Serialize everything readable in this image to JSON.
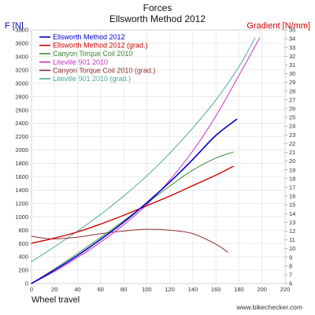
{
  "chart_data": {
    "type": "line",
    "title": "Forces",
    "subtitle": "Ellsworth Method 2012",
    "left_axis_label": "F [N]",
    "right_axis_label": "Gradient [N/mm]",
    "xlabel": "Wheel travel",
    "watermark": "www.bikechecker.com",
    "xlim": [
      0,
      220
    ],
    "ylim_left": [
      0,
      3800
    ],
    "ylim_right": [
      6,
      35
    ],
    "x_ticks": [
      0,
      20,
      40,
      60,
      80,
      100,
      120,
      140,
      160,
      180,
      200,
      220
    ],
    "y_ticks_left": [
      0,
      200,
      400,
      600,
      800,
      1000,
      1200,
      1400,
      1600,
      1800,
      2000,
      2200,
      2400,
      2600,
      2800,
      3000,
      3200,
      3400,
      3600,
      3800
    ],
    "y_ticks_right": [
      6,
      7,
      8,
      9,
      10,
      11,
      12,
      13,
      14,
      15,
      16,
      17,
      18,
      19,
      20,
      21,
      22,
      23,
      24,
      25,
      26,
      27,
      28,
      29,
      30,
      31,
      32,
      33,
      34,
      35
    ],
    "grid": true,
    "legend_position": "top-left",
    "series": [
      {
        "name": "Ellsworth Method 2012",
        "color": "#0000cc",
        "axis": "left",
        "width": 1.6,
        "x": [
          0,
          20,
          40,
          60,
          80,
          100,
          120,
          140,
          160,
          178
        ],
        "y": [
          0,
          200,
          420,
          660,
          920,
          1210,
          1520,
          1860,
          2220,
          2460
        ]
      },
      {
        "name": "Ellsworth Method 2012 (grad.)",
        "color": "#cc0000",
        "axis": "right",
        "width": 1.4,
        "x": [
          0,
          20,
          40,
          60,
          80,
          100,
          120,
          140,
          160,
          175
        ],
        "y": [
          10.6,
          11.2,
          11.9,
          12.8,
          13.8,
          14.9,
          16.0,
          17.2,
          18.4,
          19.4
        ]
      },
      {
        "name": "Canyon Torque Coil 2010",
        "color": "#3a8a3a",
        "axis": "left",
        "width": 1.0,
        "x": [
          0,
          20,
          40,
          60,
          80,
          100,
          120,
          140,
          160,
          175
        ],
        "y": [
          0,
          220,
          450,
          690,
          940,
          1200,
          1460,
          1700,
          1880,
          1970
        ]
      },
      {
        "name": "Liteville 901 2010",
        "color": "#cc33cc",
        "axis": "left",
        "width": 1.0,
        "x": [
          0,
          20,
          40,
          60,
          80,
          100,
          120,
          140,
          160,
          180,
          198
        ],
        "y": [
          0,
          180,
          390,
          620,
          880,
          1180,
          1550,
          1990,
          2510,
          3120,
          3680
        ]
      },
      {
        "name": "Canyon Torque Coil 2010 (grad.)",
        "color": "#8b3030",
        "axis": "right",
        "width": 1.0,
        "x": [
          0,
          10,
          20,
          40,
          60,
          80,
          100,
          120,
          140,
          160,
          170
        ],
        "y": [
          11.4,
          11.2,
          11.1,
          11.3,
          11.7,
          12.0,
          12.2,
          12.1,
          11.7,
          10.5,
          9.6
        ]
      },
      {
        "name": "Liteville 901 2010 (grad.)",
        "color": "#4aa89c",
        "axis": "right",
        "width": 1.0,
        "x": [
          0,
          20,
          40,
          60,
          80,
          100,
          120,
          140,
          160,
          180,
          194
        ],
        "y": [
          8.5,
          10.2,
          12.0,
          13.9,
          16.0,
          18.3,
          20.9,
          23.8,
          27.0,
          30.8,
          34.1
        ]
      }
    ]
  }
}
